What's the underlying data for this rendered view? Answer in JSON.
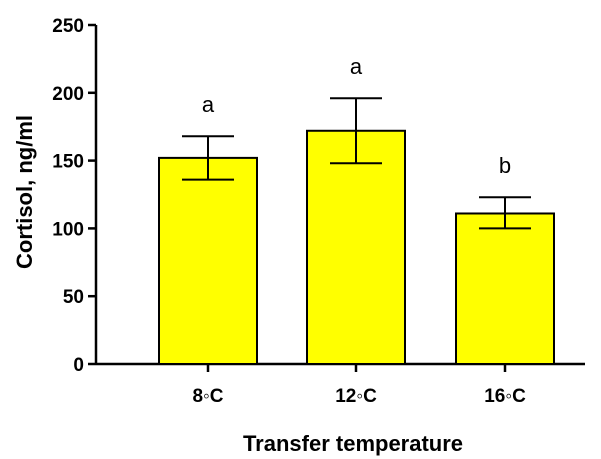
{
  "chart_data": {
    "type": "bar",
    "categories": [
      "8◦C",
      "12◦C",
      "16◦C"
    ],
    "values": [
      152,
      172,
      111
    ],
    "error_low": [
      136,
      148,
      100
    ],
    "error_high": [
      168,
      196,
      123
    ],
    "significance_labels": [
      "a",
      "a",
      "b"
    ],
    "xlabel": "Transfer temperature",
    "ylabel": "Cortisol, ng/ml",
    "ylim": [
      0,
      250
    ],
    "yticks": [
      0,
      50,
      100,
      150,
      200,
      250
    ],
    "grid": false,
    "bar_color": "#ffff00",
    "bar_edge_color": "#000000"
  }
}
